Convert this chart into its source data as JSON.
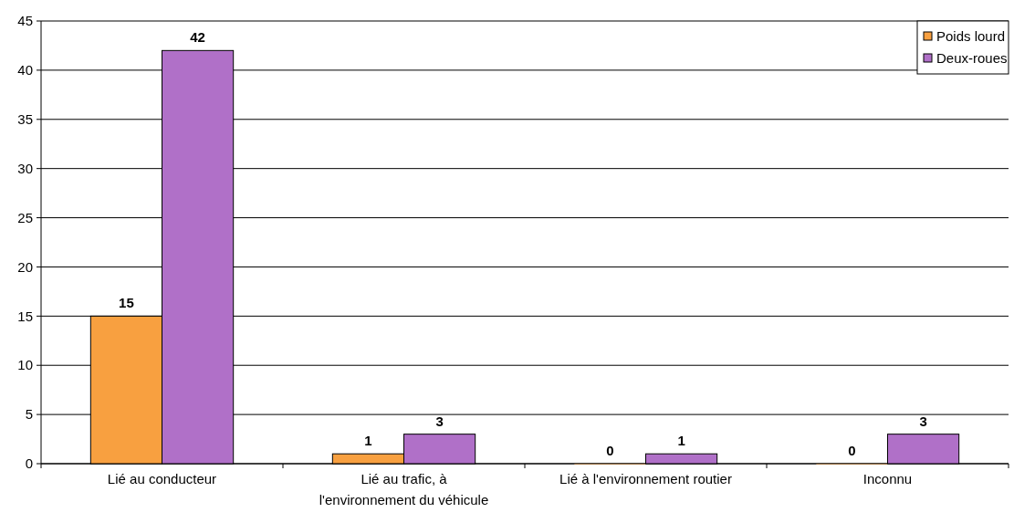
{
  "chart_data": {
    "type": "bar",
    "categories": [
      "Lié au conducteur",
      "Lié au trafic, à l'environnement du véhicule",
      "Lié à l'environnement routier",
      "Inconnu"
    ],
    "series": [
      {
        "name": "Poids lourd",
        "color": "#f8a040",
        "values": [
          15,
          1,
          0,
          0
        ]
      },
      {
        "name": "Deux-roues",
        "color": "#b070c8",
        "values": [
          42,
          3,
          1,
          3
        ]
      }
    ],
    "ylim": [
      0,
      45
    ],
    "yticks": [
      0,
      5,
      10,
      15,
      20,
      25,
      30,
      35,
      40,
      45
    ],
    "grid": "y",
    "legend": "top right",
    "data_labels": true
  }
}
